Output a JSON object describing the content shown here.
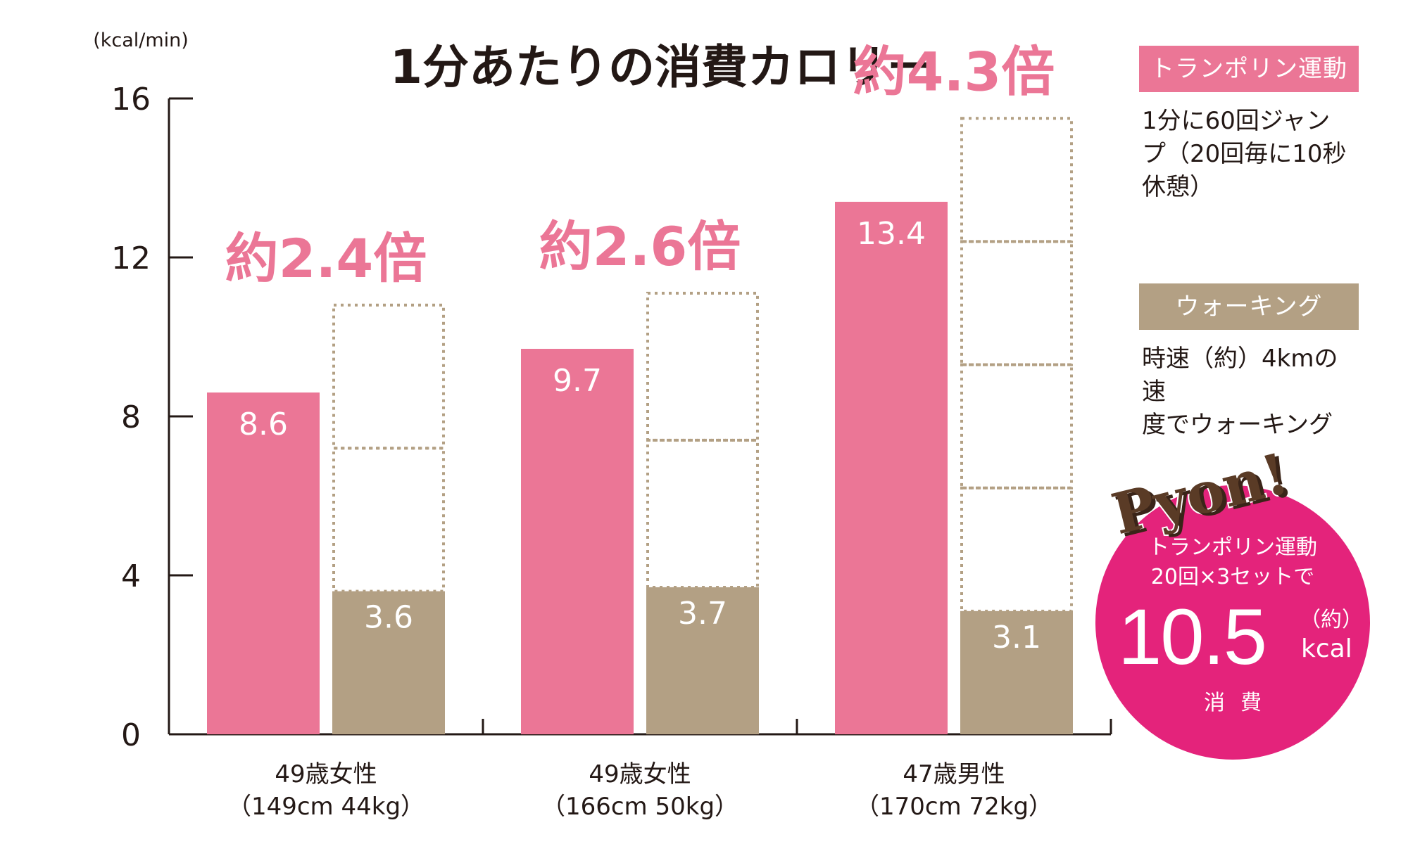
{
  "chart_data": {
    "type": "bar",
    "title": "1分あたりの消費カロリー",
    "y_unit": "(kcal/min)",
    "ylim": [
      0,
      16
    ],
    "yticks": [
      0,
      4,
      8,
      12,
      16
    ],
    "categories": [
      {
        "line1": "49歳女性",
        "line2": "（149cm 44kg）"
      },
      {
        "line1": "49歳女性",
        "line2": "（166cm 50kg）"
      },
      {
        "line1": "47歳男性",
        "line2": "（170cm 72kg）"
      }
    ],
    "series": [
      {
        "name": "トランポリン運動",
        "color": "#eb7696",
        "values": [
          8.6,
          9.7,
          13.4
        ],
        "labels": [
          "8.6",
          "9.7",
          "13.4"
        ]
      },
      {
        "name": "ウォーキング",
        "color": "#b3a084",
        "values": [
          3.6,
          3.7,
          3.1
        ],
        "labels": [
          "3.6",
          "3.7",
          "3.1"
        ]
      }
    ],
    "ratio_labels": [
      "約2.4倍",
      "約2.6倍",
      "約4.3倍"
    ],
    "ratio_color": "#eb7696",
    "dotted_color": "#b3a084",
    "grid": false
  },
  "legend": [
    {
      "name": "トランポリン運動",
      "color": "#eb7696",
      "desc_lines": [
        "1分に60回ジャン",
        "プ（20回毎に10秒",
        "休憩）"
      ]
    },
    {
      "name": "ウォーキング",
      "color": "#b3a084",
      "desc_lines": [
        "時速（約）4kmの速",
        "度でウォーキング"
      ]
    }
  ],
  "badge": {
    "logo": "Pyon!",
    "line1": "トランポリン運動",
    "line2": "20回×3セットで",
    "number": "10.5",
    "note": "（約）",
    "unit": "kcal",
    "footer": "消費",
    "color": "#e4237b"
  }
}
